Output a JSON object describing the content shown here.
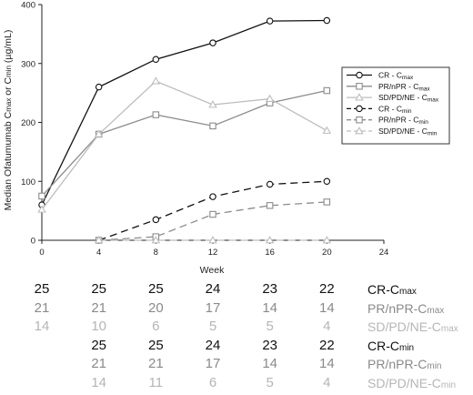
{
  "chart_data": {
    "type": "line",
    "xlabel": "Week",
    "ylabel": "Median Ofatumumab Cmax or Cmin (µg/mL)",
    "xlim": [
      0,
      24
    ],
    "ylim": [
      0,
      400
    ],
    "xticks": [
      0,
      4,
      8,
      12,
      16,
      20,
      24
    ],
    "yticks": [
      0,
      100,
      200,
      300,
      400
    ],
    "grid": false,
    "legend": "right",
    "series": [
      {
        "name": "CR - Cmax",
        "legend_main": "CR - C",
        "legend_sub": "max",
        "color": "#111111",
        "dash": "solid",
        "marker": "circle",
        "x": [
          0,
          4,
          8,
          12,
          16,
          20
        ],
        "values": [
          60,
          260,
          307,
          335,
          372,
          373
        ]
      },
      {
        "name": "PR/nPR - Cmax",
        "legend_main": "PR/nPR - C",
        "legend_sub": "max",
        "color": "#8c8c8c",
        "dash": "solid",
        "marker": "square",
        "x": [
          0,
          4,
          8,
          12,
          16,
          20
        ],
        "values": [
          75,
          180,
          213,
          194,
          233,
          254
        ]
      },
      {
        "name": "SD/PD/NE - Cmax",
        "legend_main": "SD/PD/NE - C",
        "legend_sub": "max",
        "color": "#bdbdbd",
        "dash": "solid",
        "marker": "triangle",
        "x": [
          0,
          4,
          8,
          12,
          16,
          20
        ],
        "values": [
          52,
          180,
          270,
          230,
          240,
          186
        ]
      },
      {
        "name": "CR - Cmin",
        "legend_main": "CR - C",
        "legend_sub": "min",
        "color": "#111111",
        "dash": "dashed",
        "marker": "circle",
        "x": [
          4,
          8,
          12,
          16,
          20
        ],
        "values": [
          0,
          35,
          74,
          95,
          100
        ]
      },
      {
        "name": "PR/nPR - Cmin",
        "legend_main": "PR/nPR - C",
        "legend_sub": "min",
        "color": "#8c8c8c",
        "dash": "dashed",
        "marker": "square",
        "x": [
          4,
          8,
          12,
          16,
          20
        ],
        "values": [
          0,
          6,
          44,
          59,
          65
        ]
      },
      {
        "name": "SD/PD/NE - Cmin",
        "legend_main": "SD/PD/NE - C",
        "legend_sub": "min",
        "color": "#bdbdbd",
        "dash": "dashed",
        "marker": "triangle",
        "x": [
          4,
          8,
          12,
          16,
          20
        ],
        "values": [
          0,
          0,
          0,
          0,
          0
        ]
      }
    ]
  },
  "numbers_table": {
    "weeks": [
      0,
      4,
      8,
      12,
      16,
      20
    ],
    "rows": [
      {
        "label": "CR-Cmax",
        "tone": "black",
        "counts": [
          "25",
          "25",
          "25",
          "24",
          "23",
          "22"
        ]
      },
      {
        "label": "PR/nPR-Cmax",
        "tone": "gray",
        "counts": [
          "21",
          "21",
          "20",
          "17",
          "14",
          "14"
        ]
      },
      {
        "label": "SD/PD/NE-Cmax",
        "tone": "light",
        "counts": [
          "14",
          "10",
          "6",
          "5",
          "5",
          "4"
        ]
      },
      {
        "label": "CR-Cmin",
        "tone": "black",
        "counts": [
          "",
          "25",
          "25",
          "24",
          "23",
          "22"
        ]
      },
      {
        "label": "PR/nPR-Cmin",
        "tone": "gray",
        "counts": [
          "",
          "21",
          "21",
          "17",
          "14",
          "14"
        ]
      },
      {
        "label": "SD/PD/NE-Cmin",
        "tone": "light",
        "counts": [
          "",
          "14",
          "11",
          "6",
          "5",
          "4"
        ]
      }
    ]
  }
}
